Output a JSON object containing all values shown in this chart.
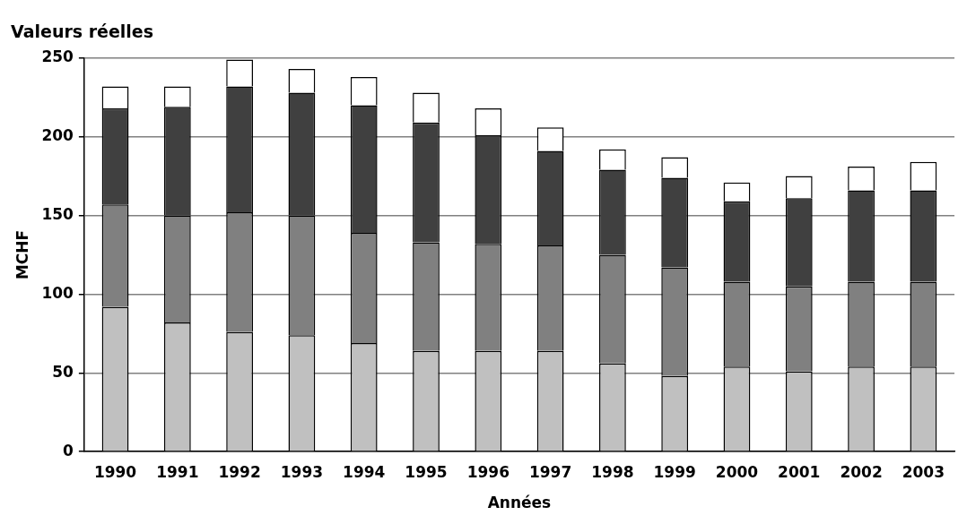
{
  "chart_data": {
    "type": "bar",
    "title": "Valeurs réelles",
    "xlabel": "Années",
    "ylabel": "MCHF",
    "categories": [
      "1990",
      "1991",
      "1992",
      "1993",
      "1994",
      "1995",
      "1996",
      "1997",
      "1998",
      "1999",
      "2000",
      "2001",
      "2002",
      "2003"
    ],
    "stacked": true,
    "ylim": [
      0,
      250
    ],
    "yticks": [
      0,
      50,
      100,
      150,
      200,
      250
    ],
    "grid": "y",
    "legend": false,
    "series": [
      {
        "color": "#c0c0c0",
        "values": [
          92,
          82,
          76,
          74,
          69,
          64,
          64,
          64,
          56,
          48,
          54,
          51,
          54,
          54
        ]
      },
      {
        "color": "#808080",
        "values": [
          65,
          68,
          76,
          76,
          70,
          69,
          68,
          67,
          69,
          69,
          54,
          54,
          54,
          54
        ]
      },
      {
        "color": "#404040",
        "values": [
          61,
          69,
          80,
          78,
          81,
          76,
          69,
          60,
          54,
          57,
          51,
          56,
          58,
          58
        ]
      },
      {
        "color": "#ffffff",
        "values": [
          14,
          13,
          17,
          15,
          18,
          19,
          17,
          15,
          13,
          13,
          12,
          14,
          15,
          18
        ]
      }
    ]
  }
}
